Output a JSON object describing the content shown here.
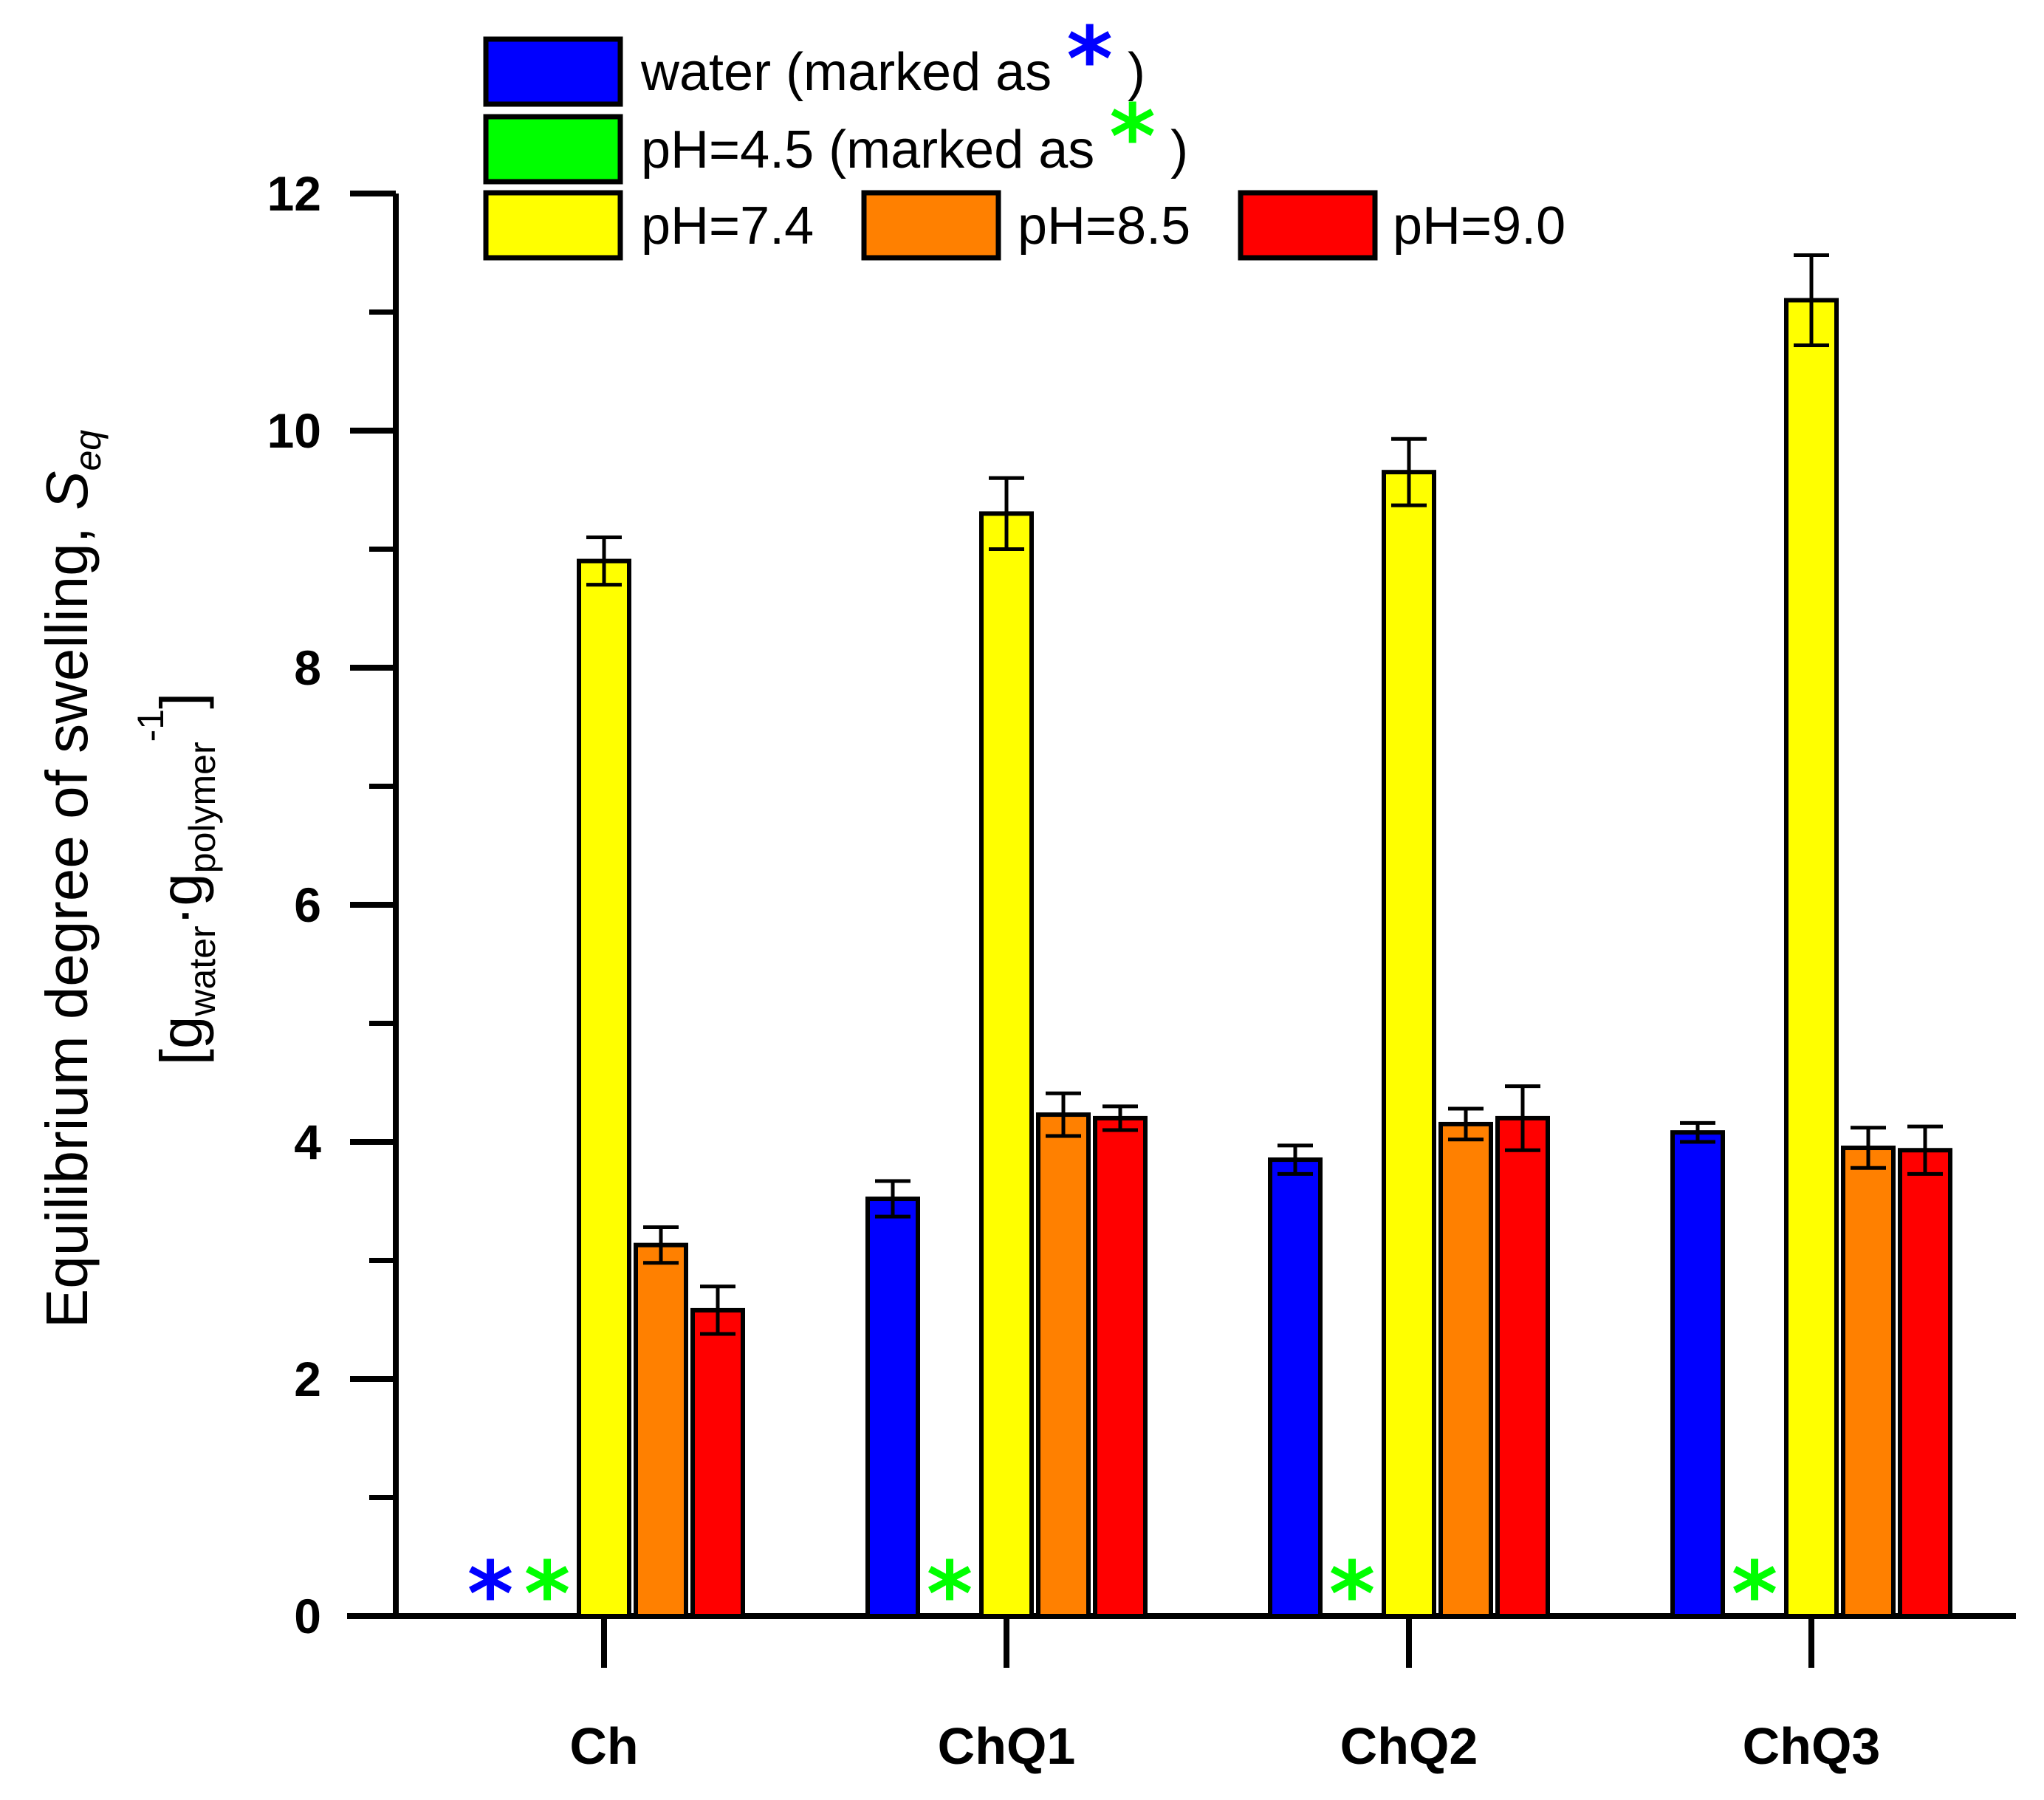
{
  "chart_data": {
    "type": "bar",
    "categories": [
      "Ch",
      "ChQ1",
      "ChQ2",
      "ChQ3"
    ],
    "ylabel": {
      "line1_main": "Equilibrium degree of swelling, ",
      "line1_symbol": "S",
      "line1_symbol_sub": "eq",
      "line2_open": "[g",
      "line2_sub1": "water",
      "line2_dot": "·g",
      "line2_sub2": "polymer",
      "line2_sup": "-1",
      "line2_close": "]"
    },
    "ylim": [
      0,
      12
    ],
    "yticks": [
      0,
      2,
      4,
      6,
      8,
      10,
      12
    ],
    "yticks_minor": [
      1,
      3,
      5,
      7,
      9,
      11
    ],
    "grid": false,
    "legend_position": "top",
    "series": [
      {
        "name": "water (marked as ",
        "marker_text": "*",
        "suffix": " )",
        "color": "#0000ff",
        "values": [
          null,
          3.52,
          3.85,
          4.08
        ],
        "errors": [
          null,
          0.15,
          0.12,
          0.08
        ],
        "marked_as_star": [
          true,
          false,
          false,
          false
        ]
      },
      {
        "name": "pH=4.5  (marked as ",
        "marker_text": "*",
        "suffix": " )",
        "color": "#00ff00",
        "values": [
          null,
          null,
          null,
          null
        ],
        "errors": [
          null,
          null,
          null,
          null
        ],
        "marked_as_star": [
          true,
          true,
          true,
          true
        ]
      },
      {
        "name": "pH=7.4",
        "color": "#ffff00",
        "values": [
          8.9,
          9.3,
          9.65,
          11.1
        ],
        "errors": [
          0.2,
          0.3,
          0.28,
          0.38
        ]
      },
      {
        "name": "pH=8.5",
        "color": "#ff8000",
        "values": [
          3.13,
          4.23,
          4.15,
          3.95
        ],
        "errors": [
          0.15,
          0.18,
          0.13,
          0.17
        ]
      },
      {
        "name": "pH=9.0",
        "color": "#ff0000",
        "values": [
          2.58,
          4.2,
          4.2,
          3.93
        ],
        "errors": [
          0.2,
          0.1,
          0.27,
          0.2
        ]
      }
    ]
  }
}
